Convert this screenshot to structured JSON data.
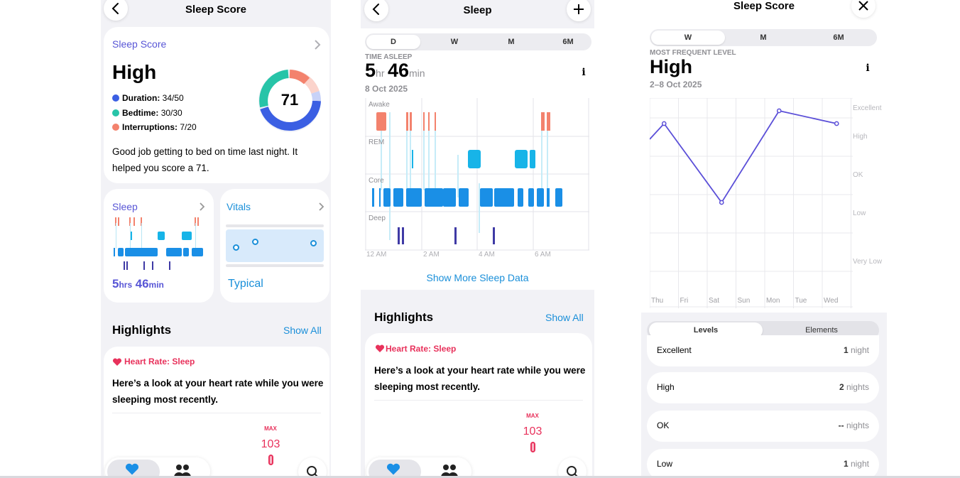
{
  "panel1": {
    "nav_title": "Sleep Score",
    "score_card": {
      "link": "Sleep Score",
      "level": "High",
      "score": "71",
      "items": [
        {
          "label": "Duration:",
          "value": "34/50",
          "color": "#3b5fe3"
        },
        {
          "label": "Bedtime:",
          "value": "30/30",
          "color": "#27c4a8"
        },
        {
          "label": "Interruptions:",
          "value": "7/20",
          "color": "#f3826d"
        }
      ],
      "message": "Good job getting to bed on time last night. It helped you score a 71."
    },
    "sleep_tile": {
      "title": "Sleep",
      "hrs_num": "5",
      "hrs_unit": "hrs",
      "min_num": "46",
      "min_unit": "min"
    },
    "vitals_tile": {
      "title": "Vitals",
      "status": "Typical"
    },
    "highlights": {
      "title": "Highlights",
      "show_all": "Show All"
    },
    "heart_card": {
      "title": "Heart Rate: Sleep",
      "body": "Here’s a look at your heart rate while you were sleeping most recently.",
      "max_label": "MAX",
      "max_value": "103"
    },
    "tabbar": {
      "icons": [
        "heart-icon",
        "people-icon",
        "search-icon"
      ]
    }
  },
  "panel2": {
    "nav_title": "Sleep",
    "segments": [
      "D",
      "W",
      "M",
      "6M"
    ],
    "active_segment": "D",
    "time_asleep_label": "TIME ASLEEP",
    "hr_num": "5",
    "hr_unit": "hr",
    "min_num": "46",
    "min_unit": "min",
    "date": "8 Oct 2025",
    "stage_labels": [
      "Awake",
      "REM",
      "Core",
      "Deep"
    ],
    "time_labels": [
      "12 AM",
      "2 AM",
      "4 AM",
      "6 AM"
    ],
    "show_more": "Show More Sleep Data",
    "highlights": {
      "title": "Highlights",
      "show_all": "Show All"
    },
    "heart_card": {
      "title": "Heart Rate: Sleep",
      "body": "Here’s a look at your heart rate while you were sleeping most recently.",
      "max_label": "MAX",
      "max_value": "103"
    }
  },
  "panel3": {
    "nav_title": "Sleep Score",
    "segments": [
      "W",
      "M",
      "6M"
    ],
    "active_segment": "W",
    "most_frequent_label": "MOST FREQUENT LEVEL",
    "level": "High",
    "date_range": "2–8 Oct 2025",
    "tabs": [
      "Levels",
      "Elements"
    ],
    "active_tab": "Levels",
    "level_rows": [
      {
        "label": "Excellent",
        "count": "1",
        "unit": "night"
      },
      {
        "label": "High",
        "count": "2",
        "unit": "nights"
      },
      {
        "label": "OK",
        "count": "--",
        "unit": "nights"
      },
      {
        "label": "Low",
        "count": "1",
        "unit": "night"
      }
    ]
  },
  "chart_data": {
    "type": "line",
    "categories": [
      "Thu",
      "Fri",
      "Sat",
      "Sun",
      "Mon",
      "Tue",
      "Wed"
    ],
    "y_levels": [
      "Excellent",
      "High",
      "OK",
      "Low",
      "Very Low"
    ],
    "points": [
      {
        "x": "Thu",
        "y": "High"
      },
      {
        "x": "Sat",
        "y": "Low"
      },
      {
        "x": "Mon",
        "y": "Excellent"
      },
      {
        "x": "Wed",
        "y": "High"
      }
    ],
    "line_color": "#5b4fd8",
    "grid": true
  }
}
